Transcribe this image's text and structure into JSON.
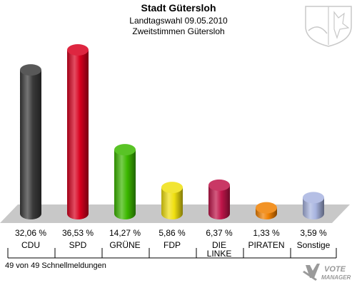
{
  "header": {
    "title": "Stadt Gütersloh",
    "subtitle1": "Landtagswahl 09.05.2010",
    "subtitle2": "Zweitstimmen Gütersloh"
  },
  "footer": {
    "text": "49 von 49 Schnellmeldungen"
  },
  "logo": {
    "line1": "VOTE",
    "line2": "MANAGER"
  },
  "chart_data": {
    "type": "bar",
    "categories": [
      "CDU",
      "SPD",
      "GRÜNE",
      "FDP",
      "DIE LINKE",
      "PIRATEN",
      "Sonstige"
    ],
    "values": [
      32.06,
      36.53,
      14.27,
      5.86,
      6.37,
      1.33,
      3.59
    ],
    "value_labels": [
      "32,06 %",
      "36,53 %",
      "14,27 %",
      "5,86 %",
      "6,37 %",
      "1,33 %",
      "3,59 %"
    ],
    "colors": [
      "#3a3a3a",
      "#d8001e",
      "#3cb800",
      "#f0e010",
      "#c0154a",
      "#f08000",
      "#a8b4e0"
    ],
    "title": "",
    "xlabel": "",
    "ylabel": "",
    "legend": "none",
    "grid": false
  }
}
